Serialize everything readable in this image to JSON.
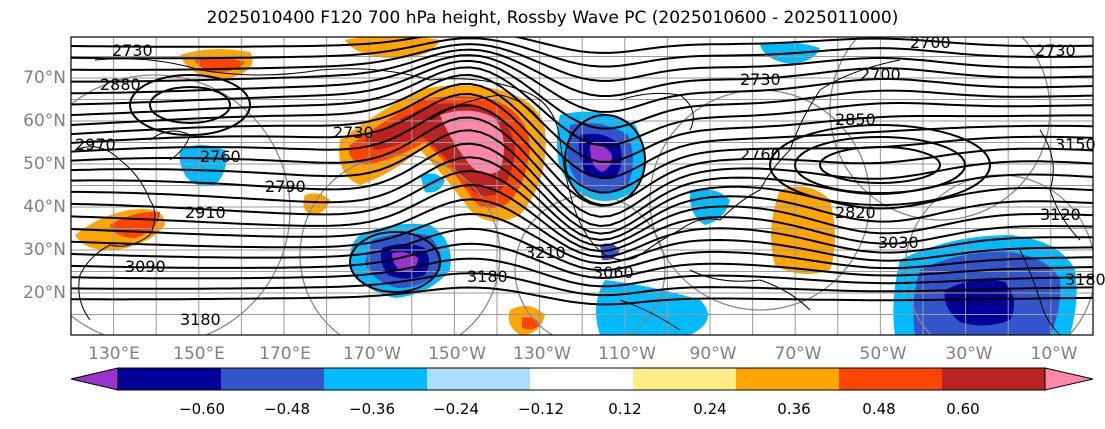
{
  "title": "2025010400 F120 700 hPa height, Rossby Wave PC (2025010600 - 2025011000)",
  "lat_labels": [
    "70°N",
    "60°N",
    "50°N",
    "40°N",
    "30°N",
    "20°N"
  ],
  "lon_labels": [
    "130°E",
    "150°E",
    "170°E",
    "170°W",
    "150°W",
    "130°W",
    "110°W",
    "90°W",
    "70°W",
    "50°W",
    "30°W",
    "10°W"
  ],
  "contour_labels": [
    "2730",
    "2880",
    "2970",
    "2700",
    "2730",
    "2850",
    "2760",
    "2730",
    "2790",
    "2910",
    "3090",
    "3180",
    "3180",
    "3210",
    "3060",
    "2820",
    "3030",
    "3120",
    "3180",
    "2760",
    "3150",
    "2700",
    "2730"
  ],
  "colorbar": {
    "tick_labels": [
      "−0.60",
      "−0.48",
      "−0.36",
      "−0.24",
      "−0.12",
      "0.12",
      "0.24",
      "0.36",
      "0.48",
      "0.60"
    ],
    "colors": [
      "#9933cc",
      "#000099",
      "#3355cc",
      "#00bbff",
      "#aaddff",
      "#ffffff",
      "#ffee88",
      "#ffa500",
      "#ff4400",
      "#bb2222",
      "#ff88aa"
    ]
  }
}
